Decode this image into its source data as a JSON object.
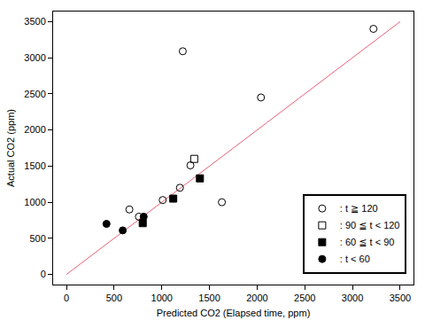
{
  "chart_data": {
    "type": "scatter",
    "x_label": "Predicted CO2 (Elapsed time, ppm)",
    "y_label": "Actual CO2 (ppm)",
    "xlim": [
      -140,
      3640
    ],
    "ylim": [
      -140,
      3640
    ],
    "xticks": [
      0,
      500,
      1000,
      1500,
      2000,
      2500,
      3000,
      3500
    ],
    "yticks": [
      0,
      500,
      1000,
      1500,
      2000,
      2500,
      3000,
      3500
    ],
    "grid": false,
    "legend": "lower right",
    "series": [
      {
        "type": "line",
        "color": "#e8607a",
        "line_style": "solid",
        "x": [
          0,
          3500
        ],
        "values": [
          0,
          3500
        ]
      },
      {
        "name": ": t ≧ 120",
        "type": "scatter",
        "marker": "circle-open",
        "color": "#000000",
        "x": [
          660,
          760,
          1010,
          1190,
          1300,
          1220,
          2040,
          1630,
          3220
        ],
        "values": [
          900,
          800,
          1030,
          1200,
          1510,
          3090,
          2450,
          1000,
          3400
        ]
      },
      {
        "name": ": 90 ≦ t < 120",
        "type": "scatter",
        "marker": "square-open",
        "color": "#000000",
        "x": [
          1340
        ],
        "values": [
          1600
        ]
      },
      {
        "name": ": 60 ≦ t < 90",
        "type": "scatter",
        "marker": "square",
        "color": "#000000",
        "x": [
          800,
          1120,
          1400
        ],
        "values": [
          710,
          1050,
          1330
        ]
      },
      {
        "name": ": t < 60",
        "type": "scatter",
        "marker": "circle",
        "color": "#000000",
        "x": [
          420,
          590,
          810
        ],
        "values": [
          700,
          610,
          800
        ]
      }
    ]
  }
}
